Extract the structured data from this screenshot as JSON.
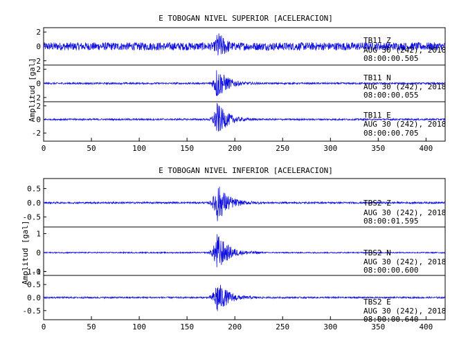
{
  "colors": {
    "trace": "#1010e0",
    "axes": "#000000",
    "background": "#ffffff"
  },
  "chart_data": [
    {
      "type": "line",
      "title": "E TOBOGAN NIVEL SUPERIOR [ACELERACION]",
      "ylabel": "Amplitud [gal]",
      "xlim": [
        0,
        420
      ],
      "x_ticks": [
        "0",
        "50",
        "100",
        "150",
        "200",
        "250",
        "300",
        "350",
        "400"
      ],
      "grid": false,
      "series": [
        {
          "name": "TB11 Z",
          "station": "TB11",
          "component": "Z",
          "date": "AUG 30 (242), 2018",
          "time": "08:00:00.505",
          "ylim": [
            -2.6,
            2.6
          ],
          "y_ticks": [
            "2",
            "0",
            "-2"
          ],
          "noise": 0.55,
          "peak": 2.2,
          "peak_t": 182,
          "coda_end": 215
        },
        {
          "name": "TB11 N",
          "station": "TB11",
          "component": "N",
          "date": "AUG 30 (242), 2018",
          "time": "08:00:00.055",
          "ylim": [
            -2.6,
            2.6
          ],
          "y_ticks": [
            "2",
            "0",
            "-2"
          ],
          "noise": 0.12,
          "peak": 2.4,
          "peak_t": 181,
          "coda_end": 235
        },
        {
          "name": "TB11 E",
          "station": "TB11",
          "component": "E",
          "date": "AUG 30 (242), 2018",
          "time": "08:00:00.705",
          "ylim": [
            -3.2,
            2.6
          ],
          "y_ticks": [
            "2",
            "0",
            "-2"
          ],
          "noise": 0.12,
          "peak": 2.6,
          "peak_t": 181,
          "coda_end": 235
        }
      ]
    },
    {
      "type": "line",
      "title": "E TOBOGAN NIVEL INFERIOR [ACELERACION]",
      "ylabel": "Amplitud [gal]",
      "xlim": [
        0,
        420
      ],
      "x_ticks": [
        "0",
        "50",
        "100",
        "150",
        "200",
        "250",
        "300",
        "350",
        "400"
      ],
      "grid": false,
      "series": [
        {
          "name": "TBS2 Z",
          "station": "TBS2",
          "component": "Z",
          "date": "AUG 30 (242), 2018",
          "time": "08:00:01.595",
          "ylim": [
            -0.85,
            0.85
          ],
          "y_ticks": [
            "0.5",
            "0.0",
            "-0.5"
          ],
          "noise": 0.03,
          "peak": 0.75,
          "peak_t": 181,
          "coda_end": 240
        },
        {
          "name": "TBS2 N",
          "station": "TBS2",
          "component": "N",
          "date": "AUG 30 (242), 2018",
          "time": "08:00:00.600",
          "ylim": [
            -1.2,
            1.35
          ],
          "y_ticks": [
            "1",
            "0",
            "-1"
          ],
          "noise": 0.03,
          "peak": 1.1,
          "peak_t": 181,
          "coda_end": 230
        },
        {
          "name": "TBS2 E",
          "station": "TBS2",
          "component": "E",
          "date": "AUG 30 (242), 2018",
          "time": "08:00:00.640",
          "ylim": [
            -0.85,
            0.85
          ],
          "y_ticks": [
            "1.0",
            "0.5",
            "0.0",
            "-0.5"
          ],
          "noise": 0.03,
          "peak": 0.7,
          "peak_t": 181,
          "coda_end": 240
        }
      ]
    }
  ]
}
